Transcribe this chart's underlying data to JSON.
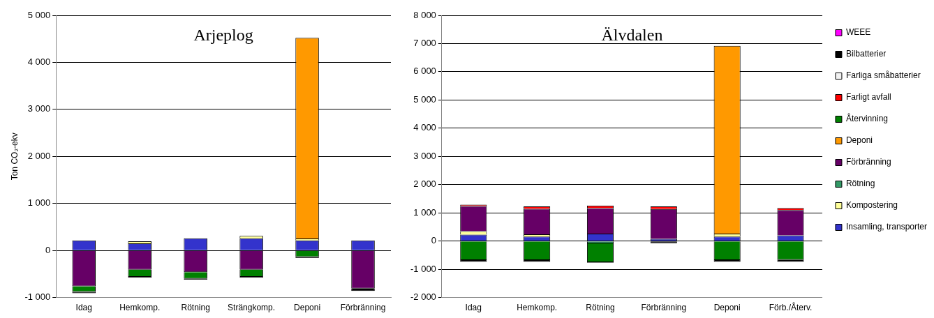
{
  "chart_data": [
    {
      "type": "bar",
      "title": "Arjeplog",
      "ylabel": "Ton CO₂-ekv",
      "stacked": true,
      "grid": "y",
      "legend": false,
      "categories": [
        "Idag",
        "Hemkomp.",
        "Rötning",
        "Strängkomp.",
        "Deponi",
        "Förbränning"
      ],
      "ylim": [
        -1000,
        5000
      ],
      "yticks": [
        {
          "value": -1000,
          "label": "-1 000"
        },
        0,
        {
          "value": 1000,
          "label": "1 000"
        },
        {
          "value": 2000,
          "label": "2 000"
        },
        {
          "value": 3000,
          "label": "3 000"
        },
        {
          "value": 4000,
          "label": "4 000"
        },
        {
          "value": 5000,
          "label": "5 000"
        }
      ],
      "series": [
        {
          "color": "#3333cc",
          "values": [
            215,
            150,
            260,
            260,
            215,
            215
          ]
        },
        {
          "color": "#ffff99",
          "values": [
            null,
            45,
            null,
            50,
            40,
            null
          ]
        },
        {
          "color": "#339966",
          "values": [
            null,
            null,
            null,
            null,
            null,
            null
          ]
        },
        {
          "color": "#660066",
          "values": [
            -760,
            -410,
            -460,
            -410,
            null,
            -810
          ]
        },
        {
          "color": "#ff9900",
          "values": [
            null,
            null,
            null,
            null,
            4265,
            null
          ]
        },
        {
          "color": "#008000",
          "values": [
            -120,
            -150,
            -140,
            -150,
            -140,
            null
          ]
        },
        {
          "color": "#ff0000",
          "values": [
            null,
            null,
            null,
            null,
            null,
            null
          ]
        },
        {
          "color": "#f2f2f2",
          "values": [
            null,
            null,
            null,
            null,
            null,
            null
          ]
        },
        {
          "color": "#000000",
          "values": [
            -30,
            -20,
            -20,
            -20,
            -20,
            -50
          ]
        },
        {
          "color": "#ff00ff",
          "values": [
            null,
            null,
            null,
            null,
            null,
            null
          ]
        }
      ]
    },
    {
      "type": "bar",
      "title": "Älvdalen",
      "stacked": true,
      "grid": "y",
      "legend": "right",
      "categories": [
        "Idag",
        "Hemkomp.",
        "Rötning",
        "Förbränning",
        "Deponi",
        "Förb./Återv."
      ],
      "ylim": [
        -2000,
        8000
      ],
      "yticks": [
        {
          "value": -2000,
          "label": "-2 000"
        },
        {
          "value": -1000,
          "label": "-1 000"
        },
        0,
        {
          "value": 1000,
          "label": "1 000"
        },
        {
          "value": 2000,
          "label": "2 000"
        },
        {
          "value": 3000,
          "label": "3 000"
        },
        {
          "value": 4000,
          "label": "4 000"
        },
        {
          "value": 5000,
          "label": "5 000"
        },
        {
          "value": 6000,
          "label": "6 000"
        },
        {
          "value": 7000,
          "label": "7 000"
        },
        {
          "value": 8000,
          "label": "8 000"
        }
      ],
      "series": [
        {
          "name": "Insamling, transporter",
          "color": "#3333cc",
          "values": [
            225,
            160,
            265,
            80,
            160,
            200
          ]
        },
        {
          "name": "Kompostering",
          "color": "#ffff99",
          "values": [
            125,
            80,
            null,
            null,
            105,
            null
          ]
        },
        {
          "name": "Rötning",
          "color": "#339966",
          "values": [
            null,
            null,
            -85,
            null,
            null,
            null
          ]
        },
        {
          "name": "Förbränning",
          "color": "#660066",
          "values": [
            890,
            900,
            900,
            1055,
            null,
            900
          ]
        },
        {
          "name": "Deponi",
          "color": "#ff9900",
          "values": [
            null,
            null,
            null,
            null,
            6655,
            null
          ]
        },
        {
          "name": "Återvinning",
          "color": "#008000",
          "values": [
            -675,
            -675,
            -665,
            null,
            -675,
            -670
          ]
        },
        {
          "name": "Farligt avfall",
          "color": "#ff0000",
          "values": [
            50,
            90,
            95,
            95,
            null,
            75
          ]
        },
        {
          "name": "Farliga småbatterier",
          "color": "#f2f2f2",
          "values": [
            null,
            null,
            null,
            null,
            null,
            null
          ]
        },
        {
          "name": "Bilbatterier",
          "color": "#000000",
          "values": [
            -65,
            -65,
            -20,
            -75,
            -65,
            -70
          ]
        },
        {
          "name": "WEEE",
          "color": "#ff00ff",
          "values": [
            null,
            null,
            null,
            null,
            null,
            null
          ]
        }
      ]
    }
  ]
}
